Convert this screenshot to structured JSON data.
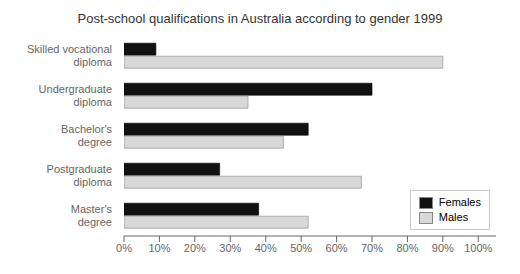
{
  "chart_data": {
    "type": "bar",
    "orientation": "horizontal",
    "title": "Post-school qualifications in Australia according to gender 1999",
    "categories": [
      "Master's\ndegree",
      "Postgraduate\ndiploma",
      "Bachelor's\ndegree",
      "Undergraduate\ndiploma",
      "Skilled vocational\ndiploma"
    ],
    "series": [
      {
        "name": "Females",
        "color": "#111111",
        "values": [
          38,
          27,
          52,
          70,
          9
        ]
      },
      {
        "name": "Males",
        "color": "#d8d8d8",
        "values": [
          52,
          67,
          45,
          35,
          90
        ]
      }
    ],
    "xlim": [
      0,
      105
    ],
    "xticks": [
      {
        "value": 0,
        "label": "0%"
      },
      {
        "value": 10,
        "label": "10%"
      },
      {
        "value": 20,
        "label": "20%"
      },
      {
        "value": 30,
        "label": "30%"
      },
      {
        "value": 40,
        "label": "40%"
      },
      {
        "value": 50,
        "label": "50%"
      },
      {
        "value": 60,
        "label": "60%"
      },
      {
        "value": 70,
        "label": "70%"
      },
      {
        "value": 80,
        "label": "80%"
      },
      {
        "value": 90,
        "label": "90%"
      },
      {
        "value": 100,
        "label": "100%"
      }
    ],
    "legend": "lower right",
    "grid": false
  }
}
